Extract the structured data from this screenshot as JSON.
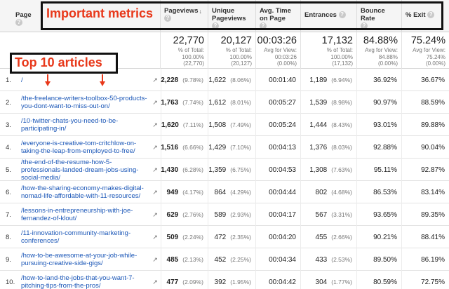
{
  "annotations": {
    "metrics_label": "Important metrics",
    "articles_label": "Top 10 articles"
  },
  "columns": {
    "page": "Page",
    "pageviews": "Pageviews",
    "unique_pageviews": "Unique Pageviews",
    "avg_time": "Avg. Time on Page",
    "entrances": "Entrances",
    "bounce_rate": "Bounce Rate",
    "exit": "% Exit",
    "help_glyph": "?",
    "sort_glyph": "↓"
  },
  "totals": {
    "pageviews": {
      "value": "22,770",
      "l1": "% of Total:",
      "l2": "100.00%",
      "l3": "(22,770)"
    },
    "unique": {
      "value": "20,127",
      "l1": "% of Total:",
      "l2": "100.00%",
      "l3": "(20,127)"
    },
    "avg_time": {
      "value": "00:03:26",
      "l1": "Avg for View:",
      "l2": "00:03:26",
      "l3": "(0.00%)"
    },
    "entrances": {
      "value": "17,132",
      "l1": "% of Total:",
      "l2": "100.00%",
      "l3": "(17,132)"
    },
    "bounce": {
      "value": "84.88%",
      "l1": "Avg for View:",
      "l2": "84.88%",
      "l3": "(0.00%)"
    },
    "exit": {
      "value": "75.24%",
      "l1": "Avg for View:",
      "l2": "75.24%",
      "l3": "(0.00%)"
    }
  },
  "rows": [
    {
      "n": "1.",
      "page": "/",
      "pv": "2,228",
      "pv_pct": "(9.78%)",
      "upv": "1,622",
      "upv_pct": "(8.06%)",
      "time": "00:01:40",
      "ent": "1,189",
      "ent_pct": "(6.94%)",
      "bounce": "36.92%",
      "exit": "36.67%"
    },
    {
      "n": "2.",
      "page": "/the-freelance-writers-toolbox-50-products-you-dont-want-to-miss-out-on/",
      "pv": "1,763",
      "pv_pct": "(7.74%)",
      "upv": "1,612",
      "upv_pct": "(8.01%)",
      "time": "00:05:27",
      "ent": "1,539",
      "ent_pct": "(8.98%)",
      "bounce": "90.97%",
      "exit": "88.59%"
    },
    {
      "n": "3.",
      "page": "/10-twitter-chats-you-need-to-be-participating-in/",
      "pv": "1,620",
      "pv_pct": "(7.11%)",
      "upv": "1,508",
      "upv_pct": "(7.49%)",
      "time": "00:05:24",
      "ent": "1,444",
      "ent_pct": "(8.43%)",
      "bounce": "93.01%",
      "exit": "89.88%"
    },
    {
      "n": "4.",
      "page": "/everyone-is-creative-tom-critchlow-on-taking-the-leap-from-employed-to-free/",
      "pv": "1,516",
      "pv_pct": "(6.66%)",
      "upv": "1,429",
      "upv_pct": "(7.10%)",
      "time": "00:04:13",
      "ent": "1,376",
      "ent_pct": "(8.03%)",
      "bounce": "92.88%",
      "exit": "90.04%"
    },
    {
      "n": "5.",
      "page": "/the-end-of-the-resume-how-5-professionals-landed-dream-jobs-using-social-media/",
      "pv": "1,430",
      "pv_pct": "(6.28%)",
      "upv": "1,359",
      "upv_pct": "(6.75%)",
      "time": "00:04:53",
      "ent": "1,308",
      "ent_pct": "(7.63%)",
      "bounce": "95.11%",
      "exit": "92.87%"
    },
    {
      "n": "6.",
      "page": "/how-the-sharing-economy-makes-digital-nomad-life-affordable-with-11-resources/",
      "pv": "949",
      "pv_pct": "(4.17%)",
      "upv": "864",
      "upv_pct": "(4.29%)",
      "time": "00:04:44",
      "ent": "802",
      "ent_pct": "(4.68%)",
      "bounce": "86.53%",
      "exit": "83.14%"
    },
    {
      "n": "7.",
      "page": "/lessons-in-entrepreneurship-with-joe-fernandez-of-klout/",
      "pv": "629",
      "pv_pct": "(2.76%)",
      "upv": "589",
      "upv_pct": "(2.93%)",
      "time": "00:04:17",
      "ent": "567",
      "ent_pct": "(3.31%)",
      "bounce": "93.65%",
      "exit": "89.35%"
    },
    {
      "n": "8.",
      "page": "/11-innovation-community-marketing-conferences/",
      "pv": "509",
      "pv_pct": "(2.24%)",
      "upv": "472",
      "upv_pct": "(2.35%)",
      "time": "00:04:20",
      "ent": "455",
      "ent_pct": "(2.66%)",
      "bounce": "90.21%",
      "exit": "88.41%"
    },
    {
      "n": "9.",
      "page": "/how-to-be-awesome-at-your-job-while-pursuing-creative-side-gigs/",
      "pv": "485",
      "pv_pct": "(2.13%)",
      "upv": "452",
      "upv_pct": "(2.25%)",
      "time": "00:04:34",
      "ent": "433",
      "ent_pct": "(2.53%)",
      "bounce": "89.50%",
      "exit": "86.19%"
    },
    {
      "n": "10.",
      "page": "/how-to-land-the-jobs-that-you-want-7-pitching-tips-from-the-pros/",
      "pv": "477",
      "pv_pct": "(2.09%)",
      "upv": "392",
      "upv_pct": "(1.95%)",
      "time": "00:04:42",
      "ent": "304",
      "ent_pct": "(1.77%)",
      "bounce": "80.59%",
      "exit": "72.75%"
    }
  ]
}
